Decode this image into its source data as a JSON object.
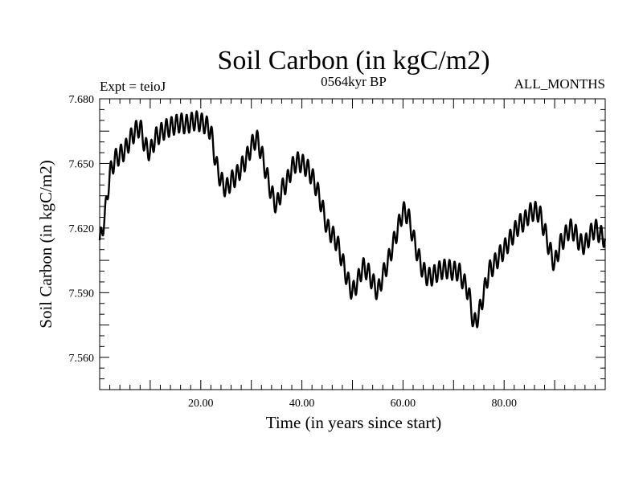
{
  "chart_data": {
    "type": "line",
    "title": "Soil Carbon (in kgC/m2)",
    "subtitle_left": "Expt = teioJ",
    "subtitle_center": "0564kyr BP",
    "subtitle_right": "ALL_MONTHS",
    "xlabel": "Time (in years since start)",
    "ylabel": "Soil Carbon (in kgC/m2)",
    "xlim": [
      0,
      100
    ],
    "ylim": [
      7.545,
      7.68
    ],
    "x_ticks": [
      20,
      40,
      60,
      80
    ],
    "x_tick_labels": [
      "20.00",
      "40.00",
      "60.00",
      "80.00"
    ],
    "y_ticks": [
      7.56,
      7.59,
      7.62,
      7.65,
      7.68
    ],
    "y_tick_labels": [
      "7.560",
      "7.590",
      "7.620",
      "7.650",
      "7.680"
    ],
    "series": [
      {
        "name": "Soil Carbon",
        "color": "#000000",
        "x": [
          0,
          1,
          2,
          3,
          4,
          5,
          6,
          7,
          8,
          9,
          10,
          11,
          12,
          13,
          14,
          15,
          16,
          17,
          18,
          19,
          20,
          21,
          22,
          23,
          24,
          25,
          26,
          27,
          28,
          29,
          30,
          31,
          32,
          33,
          34,
          35,
          36,
          37,
          38,
          39,
          40,
          41,
          42,
          43,
          44,
          45,
          46,
          47,
          48,
          49,
          50,
          51,
          52,
          53,
          54,
          55,
          56,
          57,
          58,
          59,
          60,
          61,
          62,
          63,
          64,
          65,
          66,
          67,
          68,
          69,
          70,
          71,
          72,
          73,
          74,
          75,
          76,
          77,
          78,
          79,
          80,
          81,
          82,
          83,
          84,
          85,
          86,
          87,
          88,
          89,
          90,
          91,
          92,
          93,
          94,
          95,
          96,
          97,
          98,
          99,
          100
        ],
        "y": [
          7.613,
          7.625,
          7.645,
          7.652,
          7.654,
          7.656,
          7.661,
          7.665,
          7.667,
          7.658,
          7.655,
          7.662,
          7.664,
          7.666,
          7.667,
          7.668,
          7.669,
          7.668,
          7.669,
          7.67,
          7.669,
          7.668,
          7.665,
          7.65,
          7.642,
          7.638,
          7.642,
          7.644,
          7.648,
          7.652,
          7.658,
          7.662,
          7.655,
          7.645,
          7.636,
          7.63,
          7.638,
          7.641,
          7.648,
          7.651,
          7.65,
          7.648,
          7.644,
          7.638,
          7.63,
          7.62,
          7.617,
          7.613,
          7.605,
          7.596,
          7.59,
          7.595,
          7.602,
          7.6,
          7.595,
          7.59,
          7.598,
          7.604,
          7.612,
          7.62,
          7.628,
          7.626,
          7.616,
          7.607,
          7.6,
          7.597,
          7.598,
          7.6,
          7.601,
          7.601,
          7.6,
          7.6,
          7.595,
          7.59,
          7.575,
          7.58,
          7.59,
          7.6,
          7.603,
          7.607,
          7.61,
          7.614,
          7.618,
          7.622,
          7.623,
          7.627,
          7.628,
          7.627,
          7.619,
          7.61,
          7.603,
          7.612,
          7.616,
          7.62,
          7.618,
          7.613,
          7.612,
          7.617,
          7.62,
          7.617,
          7.615
        ]
      }
    ]
  }
}
